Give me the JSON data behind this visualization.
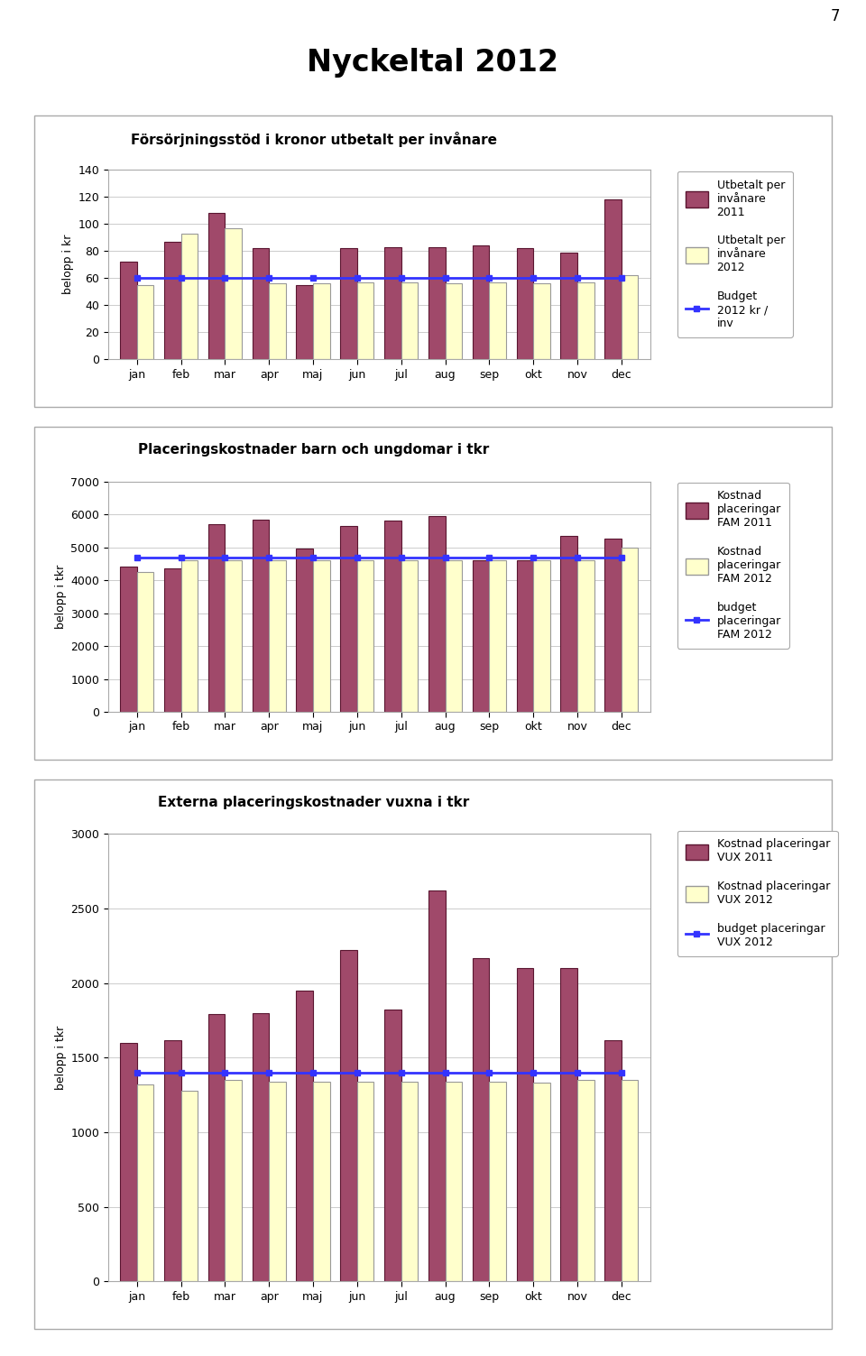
{
  "page_title": "Nyckeltal 2012",
  "page_number": "7",
  "chart1": {
    "title": "Försörjningsstöd i kronor utbetalt per invånare",
    "ylabel": "belopp i kr",
    "ylim": [
      0,
      140
    ],
    "yticks": [
      0,
      20,
      40,
      60,
      80,
      100,
      120,
      140
    ],
    "months": [
      "jan",
      "feb",
      "mar",
      "apr",
      "maj",
      "jun",
      "jul",
      "aug",
      "sep",
      "okt",
      "nov",
      "dec"
    ],
    "series2011": [
      72,
      87,
      108,
      82,
      55,
      82,
      83,
      83,
      84,
      82,
      79,
      118
    ],
    "series2012": [
      55,
      93,
      97,
      56,
      56,
      57,
      57,
      56,
      57,
      56,
      57,
      62
    ],
    "budget": 60,
    "color2011": "#A0496A",
    "color2012": "#FFFFCC",
    "budget_color": "#3333FF",
    "legend": [
      "Utbetalt per\ninvånare\n2011",
      "Utbetalt per\ninvånare\n2012",
      "Budget\n2012 kr /\ninv"
    ]
  },
  "chart2": {
    "title": "Placeringskostnader barn och ungdomar i tkr",
    "ylabel": "belopp i tkr",
    "ylim": [
      0,
      7000
    ],
    "yticks": [
      0,
      1000,
      2000,
      3000,
      4000,
      5000,
      6000,
      7000
    ],
    "months": [
      "jan",
      "feb",
      "mar",
      "apr",
      "maj",
      "jun",
      "jul",
      "aug",
      "sep",
      "okt",
      "nov",
      "dec"
    ],
    "series2011": [
      4400,
      4350,
      5700,
      5850,
      4950,
      5650,
      5800,
      5950,
      4600,
      4600,
      5350,
      5250
    ],
    "series2012": [
      4250,
      4600,
      4600,
      4600,
      4600,
      4600,
      4600,
      4600,
      4600,
      4600,
      4600,
      5000
    ],
    "budget": 4700,
    "color2011": "#A0496A",
    "color2012": "#FFFFCC",
    "budget_color": "#3333FF",
    "legend": [
      "Kostnad\nplaceringar\nFAM 2011",
      "Kostnad\nplaceringar\nFAM 2012",
      "budget\nplaceringar\nFAM 2012"
    ]
  },
  "chart3": {
    "title": "Externa placeringskostnader vuxna i tkr",
    "ylabel": "belopp i tkr",
    "ylim": [
      0,
      3000
    ],
    "yticks": [
      0,
      500,
      1000,
      1500,
      2000,
      2500,
      3000
    ],
    "months": [
      "jan",
      "feb",
      "mar",
      "apr",
      "maj",
      "jun",
      "jul",
      "aug",
      "sep",
      "okt",
      "nov",
      "dec"
    ],
    "series2011": [
      1600,
      1620,
      1790,
      1800,
      1950,
      2220,
      1820,
      2620,
      2170,
      2100,
      2100,
      1620
    ],
    "series2012": [
      1320,
      1280,
      1350,
      1340,
      1340,
      1340,
      1340,
      1340,
      1340,
      1330,
      1350,
      1350
    ],
    "budget": 1400,
    "color2011": "#A0496A",
    "color2012": "#FFFFCC",
    "budget_color": "#3333FF",
    "legend": [
      "Kostnad placeringar\nVUX 2011",
      "Kostnad placeringar\nVUX 2012",
      "budget placeringar\nVUX 2012"
    ]
  },
  "bg_color": "#FFFFFF"
}
